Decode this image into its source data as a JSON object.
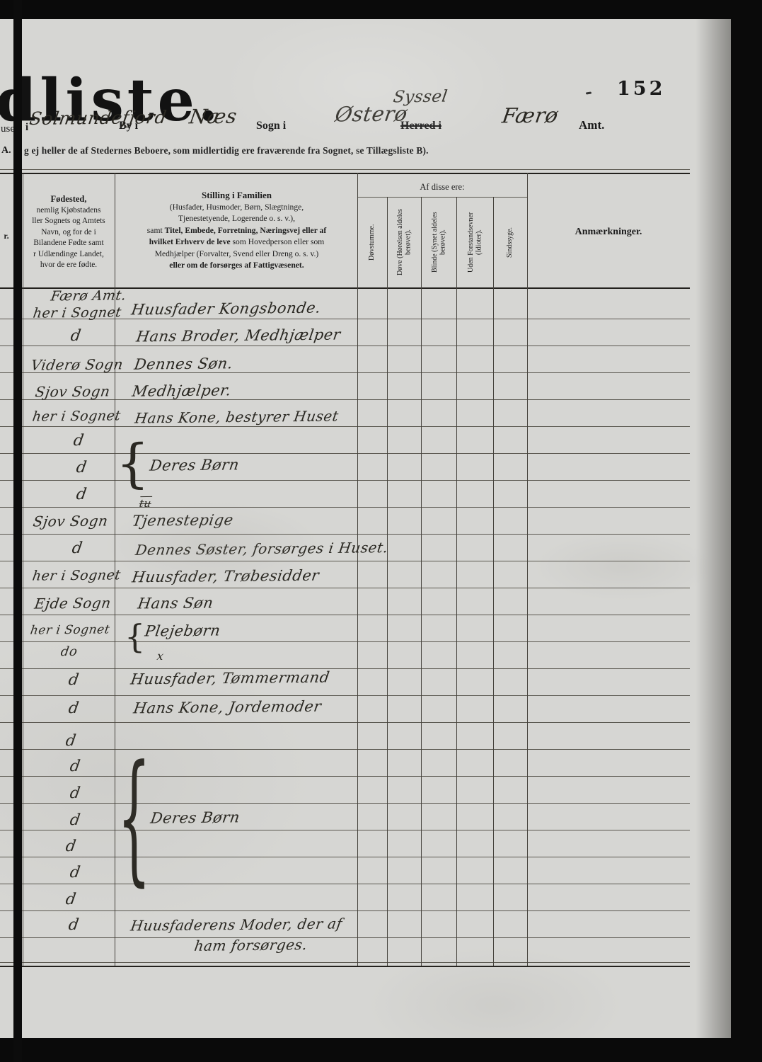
{
  "page": {
    "title_partial": "dliste.",
    "page_number": "152",
    "header_line": {
      "fragment_left": "use",
      "i_label": "i",
      "town": "Solmundefjord",
      "by_label": "By i",
      "parish": "Næs",
      "sogn_label": "Sogn i",
      "district": "Østerø",
      "syssel_note": "Syssel",
      "herred_label": "Herred i",
      "county": "Færø",
      "amt_label": "Amt."
    },
    "note_line": {
      "prefix": "A.",
      "text": "g ej heller de af Stedernes Beboere, som midlertidig ere fraværende fra Sognet, se Tillægsliste B)."
    }
  },
  "table": {
    "cut_col_partial": "r.",
    "af_disse_label": "Af disse ere:",
    "fodested_title": "Fødested,",
    "fodested_lines": [
      "nemlig Kjøbstadens",
      "ller Sognets og Amtets",
      "Navn, og for de i",
      "Bilandene Fødte samt",
      "r Udlændinge Landet,",
      "hvor de ere fødte."
    ],
    "stilling_title": "Stilling i Familien",
    "stilling_l1": "(Husfader, Husmoder, Børn, Slægtninge,",
    "stilling_l2": "Tjenestetyende, Logerende o. s. v.),",
    "stilling_l3a": "samt ",
    "stilling_l3b": "Titel, Embede, Forretning, Næringsvej eller af",
    "stilling_l4a": "hvilket Erhverv de leve",
    "stilling_l4b": " som Hovedperson eller som",
    "stilling_l5": "Medhjælper (Forvalter, Svend eller Dreng o. s. v.)",
    "stilling_l6": "eller om de forsørges af Fattigvæsenet.",
    "col_dovstumme": "Døvstumme.",
    "col_dove": "Døve (Hørelsen aldeles berøvet).",
    "col_blinde": "Blinde (Synet aldeles berøvet).",
    "col_uden": "Uden Forstandsevner (Idioter).",
    "col_sindssyge": "Sindssyge.",
    "anmaerkninger": "Anmærkninger."
  },
  "entries": {
    "f0": "Færø Amt.",
    "f1": "her i Sognet",
    "f2": "d",
    "f3": "Viderø Sogn",
    "f4": "Sjov Sogn",
    "f5": "her i Sognet",
    "f6": "d",
    "f7": "d",
    "f8": "d",
    "f9": "Sjov Sogn",
    "f10": "d",
    "f11": "her i Sognet",
    "f12": "Ejde Sogn",
    "f13": "her i Sognet",
    "f14": "do",
    "f15": "d",
    "f16": "d",
    "f17": "d",
    "f18": "d",
    "f19": "d",
    "f20": "d",
    "f21": "d",
    "f22": "d",
    "f23": "d",
    "f24": "d",
    "s0": "Huusfader Kongsbonde.",
    "s1": "Hans Broder, Medhjælper",
    "s2": "Dennes Søn.",
    "s3": "Medhjælper.",
    "s4": "Hans Kone, bestyrer Huset",
    "s5": "Deres Børn",
    "s6": "Tjenestepige",
    "s6_mark": "tu",
    "s7": "Dennes Søster, forsørges i Huset.",
    "s8": "Huusfader, Trøbesidder",
    "s9": "Hans Søn",
    "s10": "Plejebørn",
    "s10_mark": "x",
    "s11": "Huusfader, Tømmermand",
    "s12": "Hans Kone, Jordemoder",
    "s13": "Deres Børn",
    "s14": "Huusfaderens Moder, der af",
    "s15": "ham forsørges.",
    "brace": "{"
  }
}
